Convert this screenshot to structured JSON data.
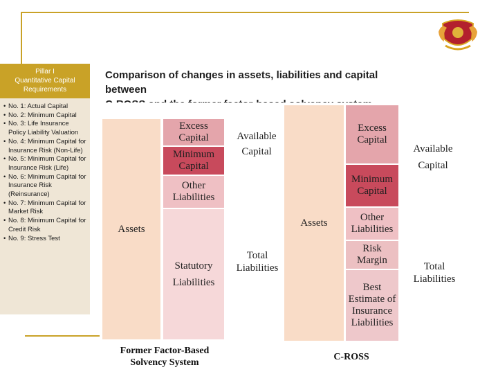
{
  "sidebar": {
    "header": [
      "Pillar I",
      "Quantitative Capital",
      "Requirements"
    ],
    "items": [
      "No. 1: Actual Capital",
      "No. 2: Minimum Capital",
      "No. 3: Life Insurance Policy Liability Valuation",
      "No. 4: Minimum Capital for Insurance Risk (Non-Life)",
      "No. 5: Minimum Capital for Insurance Risk (Life)",
      "No. 6: Minimum Capital for Insurance Risk (Reinsurance)",
      "No. 7: Minimum Capital for Market Risk",
      "No. 8: Minimum Capital for Credit Risk",
      "No. 9: Stress Test"
    ]
  },
  "title": {
    "line1": "Comparison of changes in assets, liabilities and capital",
    "line2": "between",
    "line3": "C-ROSS and the former factor-based solvency system"
  },
  "figure": {
    "left": {
      "assets": "Assets",
      "blocks": {
        "excess_capital": [
          "Excess",
          "Capital"
        ],
        "minimum_capital": [
          "Minimum",
          "Capital"
        ],
        "other_liabilities": [
          "Other",
          "Liabilities"
        ],
        "statutory_liabilities": [
          "Statutory",
          "Liabilities"
        ]
      },
      "labels": {
        "available_capital": [
          "Available",
          "Capital"
        ],
        "total_liabilities": [
          "Total",
          "Liabilities"
        ]
      },
      "caption": [
        "Former Factor-Based",
        "Solvency System"
      ]
    },
    "right": {
      "assets": "Assets",
      "blocks": {
        "excess_capital": [
          "Excess",
          "Capital"
        ],
        "minimum_capital": [
          "Minimum",
          "Capital"
        ],
        "other_liabilities": [
          "Other",
          "Liabilities"
        ],
        "risk_margin": [
          "Risk",
          "Margin"
        ],
        "best_estimate": [
          "Best",
          "Estimate of",
          "Insurance",
          "Liabilities"
        ]
      },
      "labels": {
        "available_capital": [
          "Available",
          "Capital"
        ],
        "total_liabilities": [
          "Total",
          "Liabilities"
        ]
      },
      "caption": [
        "C-ROSS"
      ]
    },
    "colors": {
      "assets": "#f9dcc7",
      "excess": "#e4a5ab",
      "minimum": "#c84a5c",
      "other": "#efc0c4",
      "statutory": "#f6d8d9",
      "risk": "#ecc0c2",
      "best": "#eec8cb"
    }
  }
}
